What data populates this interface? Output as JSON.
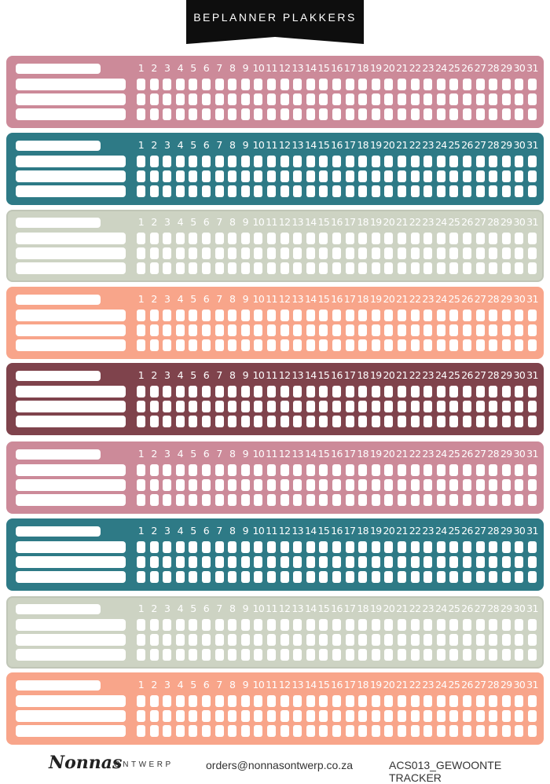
{
  "header": {
    "title": "BEPLANNER PLAKKERS"
  },
  "palette": {
    "rose": "#cc8a99",
    "teal": "#2e7a86",
    "sage": "#cdd3c3",
    "peach": "#f8a58a",
    "plum": "#7f434c"
  },
  "strips": [
    {
      "color": "rose"
    },
    {
      "color": "teal"
    },
    {
      "color": "sage"
    },
    {
      "color": "peach"
    },
    {
      "color": "plum"
    },
    {
      "color": "rose"
    },
    {
      "color": "teal"
    },
    {
      "color": "sage"
    },
    {
      "color": "peach"
    }
  ],
  "day_numbers": [
    "1",
    "2",
    "3",
    "4",
    "5",
    "6",
    "7",
    "8",
    "9",
    "10",
    "11",
    "12",
    "13",
    "14",
    "15",
    "16",
    "17",
    "18",
    "19",
    "20",
    "21",
    "22",
    "23",
    "24",
    "25",
    "26",
    "27",
    "28",
    "29",
    "30",
    "31"
  ],
  "footer": {
    "brand": "Nonnas",
    "brand_sub": "ONTWERP",
    "email": "orders@nonnasontwerp.co.za",
    "product_code": "ACS013_GEWOONTE TRACKER"
  }
}
